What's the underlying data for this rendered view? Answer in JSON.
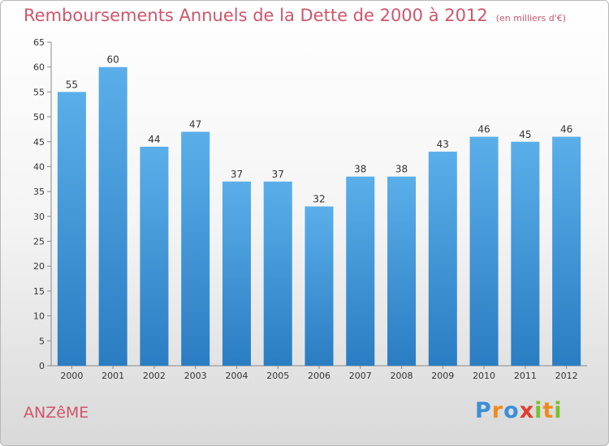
{
  "title": "Remboursements Annuels de la Dette de 2000 à 2012",
  "unit": "(en milliers d'€)",
  "commune": "ANZêME",
  "logo": "Proxiti",
  "chart_data": {
    "type": "bar",
    "categories": [
      "2000",
      "2001",
      "2002",
      "2003",
      "2004",
      "2005",
      "2006",
      "2007",
      "2008",
      "2009",
      "2010",
      "2011",
      "2012"
    ],
    "values": [
      55,
      60,
      44,
      47,
      37,
      37,
      32,
      38,
      38,
      43,
      46,
      45,
      46
    ],
    "title": "Remboursements Annuels de la Dette de 2000 à 2012",
    "xlabel": "",
    "ylabel": "",
    "ylim": [
      0,
      65
    ],
    "yticks": [
      0,
      5,
      10,
      15,
      20,
      25,
      30,
      35,
      40,
      45,
      50,
      55,
      60,
      65
    ],
    "grid": false,
    "colors": {
      "bar_top": "#5aafea",
      "bar_bottom": "#2a7dc2",
      "title": "#d0556a"
    }
  }
}
